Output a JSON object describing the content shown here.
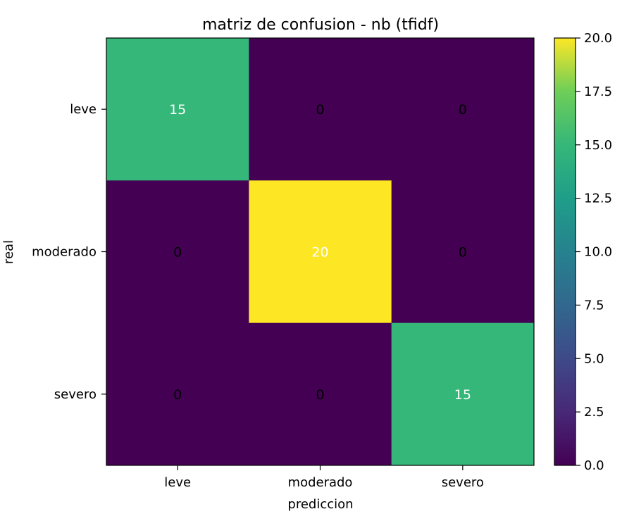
{
  "chart_data": {
    "type": "heatmap",
    "title": "matriz de confusion - nb (tfidf)",
    "xlabel": "prediccion",
    "ylabel": "real",
    "x_categories": [
      "leve",
      "moderado",
      "severo"
    ],
    "y_categories": [
      "leve",
      "moderado",
      "severo"
    ],
    "values": [
      [
        15,
        0,
        0
      ],
      [
        0,
        20,
        0
      ],
      [
        0,
        0,
        15
      ]
    ],
    "colormap": "viridis",
    "colorbar": {
      "range": [
        0,
        20
      ],
      "ticks": [
        "0.0",
        "2.5",
        "5.0",
        "7.5",
        "10.0",
        "12.5",
        "15.0",
        "17.5",
        "20.0"
      ]
    },
    "colors": {
      "low": "#440154",
      "mid": "#5ec962",
      "high": "#fde725",
      "light_text": "#ffffff",
      "dark_text": "#000000"
    }
  }
}
